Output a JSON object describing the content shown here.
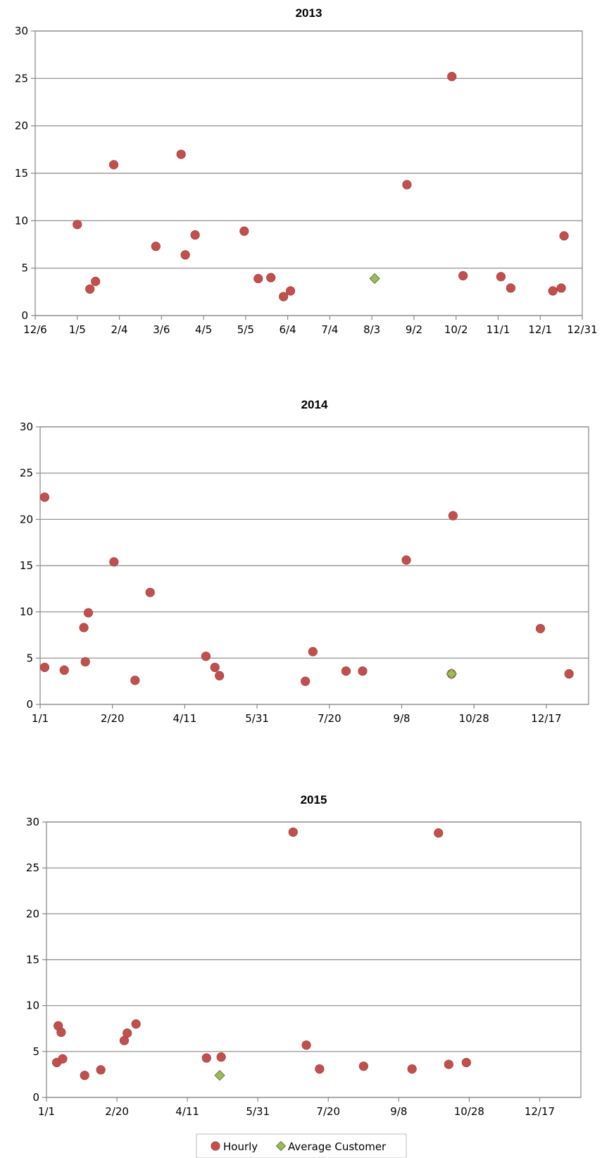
{
  "colors": {
    "hourly": "#c0504d",
    "hourly_stroke": "#a84340",
    "average": "#9bbb59",
    "average_stroke": "#6d7f3f",
    "grid": "#878787"
  },
  "legend": {
    "placement": "bottom-center",
    "items": [
      {
        "label": "Hourly",
        "marker": "circle",
        "color": "#c0504d"
      },
      {
        "label": "Average Customer",
        "marker": "diamond",
        "color": "#9bbb59"
      }
    ]
  },
  "chart_data": [
    {
      "type": "scatter",
      "title": "2013",
      "xlabel": "",
      "ylabel": "",
      "grid": true,
      "xlim": [
        "2012-12-06",
        "2013-12-31"
      ],
      "ylim": [
        0,
        30
      ],
      "x_ticks": [
        "12/6",
        "1/5",
        "2/4",
        "3/6",
        "4/5",
        "5/5",
        "6/4",
        "7/4",
        "8/3",
        "9/2",
        "10/2",
        "11/1",
        "12/1",
        "12/31"
      ],
      "y_ticks": [
        "0",
        "5",
        "10",
        "15",
        "20",
        "25",
        "30"
      ],
      "series": [
        {
          "name": "Hourly",
          "marker": "circle",
          "points": [
            [
              "2013-01-05",
              9.6
            ],
            [
              "2013-01-14",
              2.8
            ],
            [
              "2013-01-18",
              3.6
            ],
            [
              "2013-01-31",
              15.9
            ],
            [
              "2013-03-02",
              7.3
            ],
            [
              "2013-03-20",
              17.0
            ],
            [
              "2013-03-23",
              6.4
            ],
            [
              "2013-03-30",
              8.5
            ],
            [
              "2013-05-04",
              8.9
            ],
            [
              "2013-05-14",
              3.9
            ],
            [
              "2013-05-23",
              4.0
            ],
            [
              "2013-06-01",
              2.0
            ],
            [
              "2013-06-06",
              2.6
            ],
            [
              "2013-08-28",
              13.8
            ],
            [
              "2013-09-29",
              25.2
            ],
            [
              "2013-10-07",
              4.2
            ],
            [
              "2013-11-03",
              4.1
            ],
            [
              "2013-11-10",
              2.9
            ],
            [
              "2013-12-10",
              2.6
            ],
            [
              "2013-12-16",
              2.9
            ],
            [
              "2013-12-18",
              8.4
            ]
          ]
        },
        {
          "name": "Average Customer",
          "marker": "diamond",
          "points": [
            [
              "2013-08-05",
              3.9
            ]
          ]
        }
      ]
    },
    {
      "type": "scatter",
      "title": "2014",
      "xlabel": "",
      "ylabel": "",
      "grid": true,
      "xlim": [
        "2014-01-01",
        "2014-12-31"
      ],
      "ylim": [
        0,
        30
      ],
      "x_ticks": [
        "1/1",
        "2/20",
        "4/11",
        "5/31",
        "7/20",
        "9/8",
        "10/28",
        "12/17"
      ],
      "y_ticks": [
        "0",
        "5",
        "10",
        "15",
        "20",
        "25",
        "30"
      ],
      "series": [
        {
          "name": "Hourly",
          "marker": "circle",
          "points": [
            [
              "2014-01-04",
              22.4
            ],
            [
              "2014-01-04",
              4.0
            ],
            [
              "2014-01-17",
              3.7
            ],
            [
              "2014-01-30",
              8.3
            ],
            [
              "2014-01-31",
              4.6
            ],
            [
              "2014-02-02",
              9.9
            ],
            [
              "2014-02-19",
              15.4
            ],
            [
              "2014-03-05",
              2.6
            ],
            [
              "2014-03-15",
              12.1
            ],
            [
              "2014-04-21",
              5.2
            ],
            [
              "2014-04-27",
              4.0
            ],
            [
              "2014-04-30",
              3.1
            ],
            [
              "2014-06-26",
              2.5
            ],
            [
              "2014-07-01",
              5.7
            ],
            [
              "2014-07-23",
              3.6
            ],
            [
              "2014-08-03",
              3.6
            ],
            [
              "2014-09-01",
              15.6
            ],
            [
              "2014-10-02",
              20.4
            ],
            [
              "2014-10-01",
              3.3
            ],
            [
              "2014-11-29",
              8.2
            ],
            [
              "2014-12-18",
              3.3
            ]
          ]
        },
        {
          "name": "Average Customer",
          "marker": "diamond",
          "points": [
            [
              "2014-10-01",
              3.3
            ]
          ]
        }
      ]
    },
    {
      "type": "scatter",
      "title": "2015",
      "xlabel": "",
      "ylabel": "",
      "grid": true,
      "xlim": [
        "2015-01-01",
        "2015-12-31"
      ],
      "ylim": [
        0,
        30
      ],
      "x_ticks": [
        "1/1",
        "2/20",
        "4/11",
        "5/31",
        "7/20",
        "9/8",
        "10/28",
        "12/17"
      ],
      "y_ticks": [
        "0",
        "5",
        "10",
        "15",
        "20",
        "25",
        "30"
      ],
      "series": [
        {
          "name": "Hourly",
          "marker": "circle",
          "points": [
            [
              "2015-01-08",
              3.8
            ],
            [
              "2015-01-09",
              7.8
            ],
            [
              "2015-01-11",
              7.1
            ],
            [
              "2015-01-12",
              4.2
            ],
            [
              "2015-01-27",
              2.4
            ],
            [
              "2015-02-07",
              3.0
            ],
            [
              "2015-02-23",
              6.2
            ],
            [
              "2015-02-25",
              7.0
            ],
            [
              "2015-03-03",
              8.0
            ],
            [
              "2015-04-20",
              4.3
            ],
            [
              "2015-04-30",
              4.4
            ],
            [
              "2015-06-18",
              28.9
            ],
            [
              "2015-06-27",
              5.7
            ],
            [
              "2015-07-06",
              3.1
            ],
            [
              "2015-08-05",
              3.4
            ],
            [
              "2015-09-07",
              3.1
            ],
            [
              "2015-09-25",
              28.8
            ],
            [
              "2015-10-02",
              3.6
            ],
            [
              "2015-10-14",
              3.8
            ]
          ]
        },
        {
          "name": "Average Customer",
          "marker": "diamond",
          "points": [
            [
              "2015-04-29",
              2.4
            ]
          ]
        }
      ]
    }
  ]
}
